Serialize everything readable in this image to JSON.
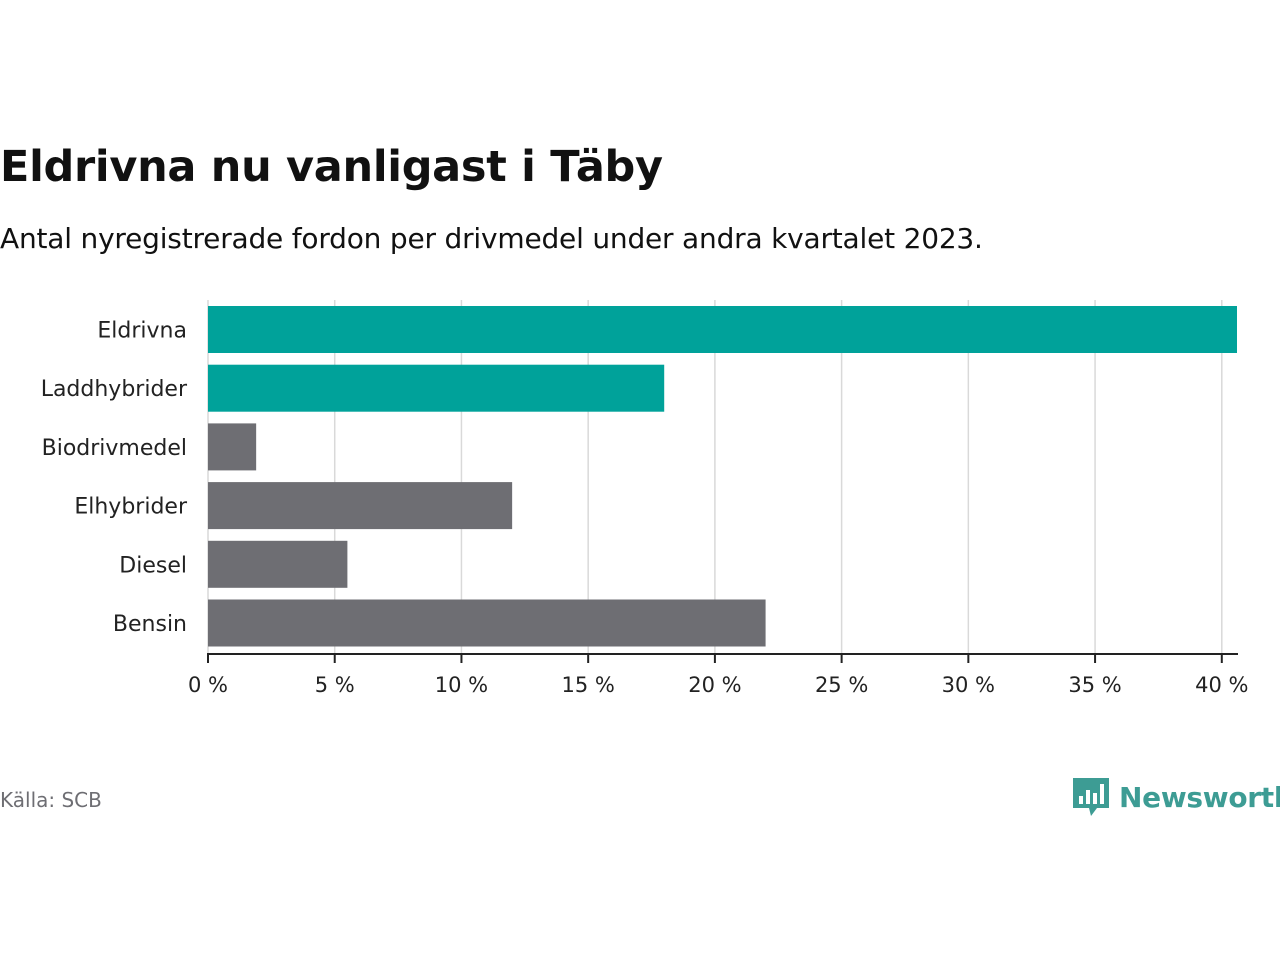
{
  "title": "Eldrivna nu vanligast i Täby",
  "subtitle": "Antal nyregistrerade fordon per drivmedel under andra kvartalet 2023.",
  "source": "Källa: SCB",
  "brand": {
    "name": "Newsworthy",
    "icon": "newsworthy-logo-icon"
  },
  "colors": {
    "highlight": "#00a29a",
    "default": "#6e6e73",
    "grid": "#d9d9d9",
    "axis": "#222222"
  },
  "chart_data": {
    "type": "bar",
    "orientation": "horizontal",
    "categories": [
      "Eldrivna",
      "Laddhybrider",
      "Biodrivmedel",
      "Elhybrider",
      "Diesel",
      "Bensin"
    ],
    "values": [
      40.6,
      18.0,
      1.9,
      12.0,
      5.5,
      22.0
    ],
    "highlighted": [
      true,
      true,
      false,
      false,
      false,
      false
    ],
    "xlim": [
      0,
      40.6
    ],
    "xticks": [
      0,
      5,
      10,
      15,
      20,
      25,
      30,
      35,
      40
    ],
    "xtick_labels": [
      "0 %",
      "5 %",
      "10 %",
      "15 %",
      "20 %",
      "25 %",
      "30 %",
      "35 %",
      "40 %"
    ],
    "grid": true,
    "xlabel": "",
    "ylabel": ""
  }
}
